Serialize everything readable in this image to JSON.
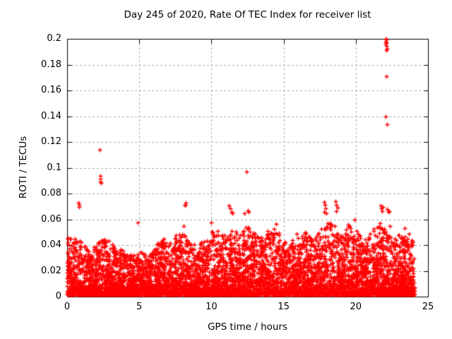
{
  "chart_data": {
    "type": "scatter",
    "title": "Day 245 of 2020, Rate Of TEC Index for receiver list",
    "xlabel": "GPS time / hours",
    "ylabel": "ROTI / TECUs",
    "xlim": [
      0,
      25
    ],
    "ylim": [
      0,
      0.2
    ],
    "xticks": [
      0,
      5,
      10,
      15,
      20,
      25
    ],
    "xtick_labels": [
      "0",
      "5",
      "10",
      "15",
      "20",
      "25"
    ],
    "yticks": [
      0,
      0.02,
      0.04,
      0.06,
      0.08,
      0.1,
      0.12,
      0.14,
      0.16,
      0.18,
      0.2
    ],
    "ytick_labels": [
      "0",
      "0.02",
      "0.04",
      "0.06",
      "0.08",
      "0.1",
      "0.12",
      "0.14",
      "0.16",
      "0.18",
      "0.2"
    ],
    "grid": true,
    "legend": "none",
    "marker": {
      "shape": "plus",
      "size": 7
    },
    "colors": {
      "marker": "#ff0000",
      "grid": "#a8a8a8",
      "axis": "#000000",
      "background": "#ffffff"
    },
    "outliers": [
      [
        0.03,
        0.0455
      ],
      [
        0.06,
        0.042
      ],
      [
        0.78,
        0.073
      ],
      [
        0.82,
        0.0715
      ],
      [
        0.85,
        0.0695
      ],
      [
        2.25,
        0.114
      ],
      [
        2.28,
        0.0935
      ],
      [
        2.32,
        0.0915
      ],
      [
        2.3,
        0.0895
      ],
      [
        2.35,
        0.088
      ],
      [
        4.88,
        0.0575
      ],
      [
        8.05,
        0.055
      ],
      [
        8.15,
        0.0715
      ],
      [
        8.22,
        0.073
      ],
      [
        8.18,
        0.0705
      ],
      [
        10.0,
        0.0575
      ],
      [
        10.4,
        0.051
      ],
      [
        11.2,
        0.0705
      ],
      [
        11.3,
        0.0685
      ],
      [
        11.38,
        0.066
      ],
      [
        11.45,
        0.0645
      ],
      [
        12.3,
        0.0645
      ],
      [
        12.42,
        0.097
      ],
      [
        12.5,
        0.067
      ],
      [
        12.55,
        0.0655
      ],
      [
        13.9,
        0.051
      ],
      [
        14.5,
        0.0565
      ],
      [
        15.9,
        0.049
      ],
      [
        17.8,
        0.0735
      ],
      [
        17.85,
        0.071
      ],
      [
        17.9,
        0.0685
      ],
      [
        17.82,
        0.066
      ],
      [
        17.95,
        0.0645
      ],
      [
        18.6,
        0.074
      ],
      [
        18.66,
        0.0715
      ],
      [
        18.72,
        0.069
      ],
      [
        18.62,
        0.0665
      ],
      [
        19.9,
        0.0595
      ],
      [
        21.7,
        0.0705
      ],
      [
        21.76,
        0.0685
      ],
      [
        21.82,
        0.0665
      ],
      [
        21.86,
        0.0695
      ],
      [
        22.18,
        0.068
      ],
      [
        22.25,
        0.0655
      ],
      [
        22.3,
        0.0665
      ],
      [
        22.35,
        0.0548
      ],
      [
        22.05,
        0.2
      ],
      [
        22.1,
        0.1995
      ],
      [
        22.08,
        0.198
      ],
      [
        22.12,
        0.1975
      ],
      [
        22.06,
        0.196
      ],
      [
        22.1,
        0.1945
      ],
      [
        22.14,
        0.1925
      ],
      [
        22.1,
        0.191
      ],
      [
        22.1,
        0.171
      ],
      [
        22.05,
        0.1395
      ],
      [
        22.15,
        0.1335
      ]
    ],
    "band": {
      "description": "dense quasi-continuous scatter of ROTI values for all receivers",
      "x_start": 0.0,
      "x_end": 24.05,
      "n_points": 7000,
      "seed": 2452020,
      "y_floor": 0.0015,
      "power": 2.6,
      "envelope_step_hours": 0.5,
      "envelope": [
        0.046,
        0.045,
        0.044,
        0.036,
        0.04,
        0.047,
        0.042,
        0.038,
        0.035,
        0.032,
        0.035,
        0.033,
        0.04,
        0.044,
        0.046,
        0.048,
        0.052,
        0.042,
        0.04,
        0.044,
        0.052,
        0.047,
        0.048,
        0.052,
        0.048,
        0.056,
        0.05,
        0.046,
        0.052,
        0.056,
        0.042,
        0.045,
        0.047,
        0.05,
        0.044,
        0.052,
        0.058,
        0.056,
        0.046,
        0.058,
        0.052,
        0.046,
        0.05,
        0.058,
        0.055,
        0.046,
        0.05,
        0.055,
        0.042
      ]
    }
  }
}
